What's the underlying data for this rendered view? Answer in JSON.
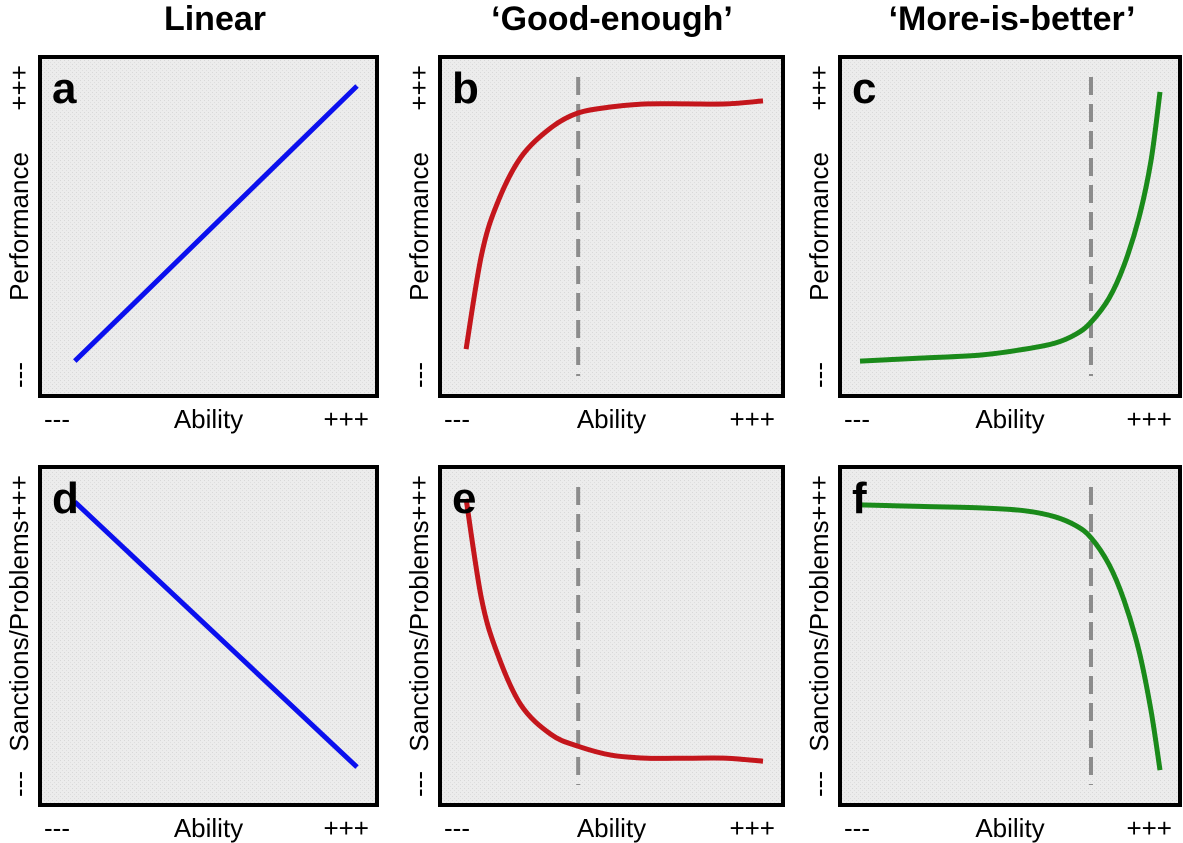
{
  "column_titles": [
    "Linear",
    "‘Good-enough’",
    "‘More-is-better’"
  ],
  "colors": {
    "linear": "#0b10ee",
    "good_enough": "#c4161c",
    "more_is_better": "#1a8a1a",
    "threshold": "#8c8c8c",
    "panel_bg": "#ececec"
  },
  "chart_data": [
    {
      "type": "line",
      "panel": "a",
      "column": "Linear",
      "xlabel": "Ability",
      "ylabel": "Performance",
      "x_ticks": [
        "---",
        "+++"
      ],
      "y_ticks": [
        "---",
        "+++"
      ],
      "xlim": [
        0,
        1
      ],
      "ylim": [
        0,
        1
      ],
      "threshold_x": null,
      "color_key": "linear",
      "series": [
        {
          "name": "Linear",
          "x": [
            0.05,
            1.0
          ],
          "y": [
            0.05,
            0.97
          ]
        }
      ]
    },
    {
      "type": "line",
      "panel": "b",
      "column": "‘Good-enough’",
      "xlabel": "Ability",
      "ylabel": "Performance",
      "x_ticks": [
        "---",
        "+++"
      ],
      "y_ticks": [
        "---",
        "+++"
      ],
      "xlim": [
        0,
        1
      ],
      "ylim": [
        0,
        1
      ],
      "threshold_x": 0.39,
      "color_key": "good_enough",
      "series": [
        {
          "name": "Good-enough",
          "x": [
            0.02,
            0.07,
            0.12,
            0.2,
            0.3,
            0.39,
            0.5,
            0.62,
            0.75,
            0.88,
            1.0
          ],
          "y": [
            0.09,
            0.4,
            0.57,
            0.73,
            0.83,
            0.88,
            0.9,
            0.91,
            0.91,
            0.91,
            0.92
          ]
        }
      ]
    },
    {
      "type": "line",
      "panel": "c",
      "column": "‘More-is-better’",
      "xlabel": "Ability",
      "ylabel": "Performance",
      "x_ticks": [
        "---",
        "+++"
      ],
      "y_ticks": [
        "---",
        "+++"
      ],
      "xlim": [
        0,
        1
      ],
      "ylim": [
        0,
        1
      ],
      "threshold_x": 0.77,
      "color_key": "more_is_better",
      "series": [
        {
          "name": "More-is-better",
          "x": [
            0.0,
            0.2,
            0.4,
            0.55,
            0.65,
            0.72,
            0.77,
            0.83,
            0.88,
            0.93,
            0.97,
            1.0
          ],
          "y": [
            0.05,
            0.06,
            0.07,
            0.09,
            0.11,
            0.14,
            0.18,
            0.26,
            0.37,
            0.53,
            0.72,
            0.95
          ]
        }
      ]
    },
    {
      "type": "line",
      "panel": "d",
      "column": "Linear",
      "xlabel": "Ability",
      "ylabel": "Sanctions/Problems",
      "x_ticks": [
        "---",
        "+++"
      ],
      "y_ticks": [
        "---",
        "+++"
      ],
      "xlim": [
        0,
        1
      ],
      "ylim": [
        0,
        1
      ],
      "threshold_x": null,
      "color_key": "linear",
      "series": [
        {
          "name": "Linear",
          "x": [
            0.05,
            1.0
          ],
          "y": [
            0.95,
            0.06
          ]
        }
      ]
    },
    {
      "type": "line",
      "panel": "e",
      "column": "‘Good-enough’",
      "xlabel": "Ability",
      "ylabel": "Sanctions/Problems",
      "x_ticks": [
        "---",
        "+++"
      ],
      "y_ticks": [
        "---",
        "+++"
      ],
      "xlim": [
        0,
        1
      ],
      "ylim": [
        0,
        1
      ],
      "threshold_x": 0.39,
      "color_key": "good_enough",
      "series": [
        {
          "name": "Good-enough",
          "x": [
            0.02,
            0.07,
            0.12,
            0.2,
            0.3,
            0.39,
            0.5,
            0.62,
            0.75,
            0.88,
            1.0
          ],
          "y": [
            0.96,
            0.63,
            0.45,
            0.27,
            0.17,
            0.13,
            0.1,
            0.09,
            0.09,
            0.09,
            0.08
          ]
        }
      ]
    },
    {
      "type": "line",
      "panel": "f",
      "column": "‘More-is-better’",
      "xlabel": "Ability",
      "ylabel": "Sanctions/Problems",
      "x_ticks": [
        "---",
        "+++"
      ],
      "y_ticks": [
        "---",
        "+++"
      ],
      "xlim": [
        0,
        1
      ],
      "ylim": [
        0,
        1
      ],
      "threshold_x": 0.77,
      "color_key": "more_is_better",
      "series": [
        {
          "name": "More-is-better",
          "x": [
            0.0,
            0.2,
            0.4,
            0.55,
            0.65,
            0.72,
            0.77,
            0.83,
            0.88,
            0.93,
            0.97,
            1.0
          ],
          "y": [
            0.94,
            0.935,
            0.93,
            0.92,
            0.9,
            0.87,
            0.83,
            0.74,
            0.62,
            0.45,
            0.25,
            0.05
          ]
        }
      ]
    }
  ]
}
